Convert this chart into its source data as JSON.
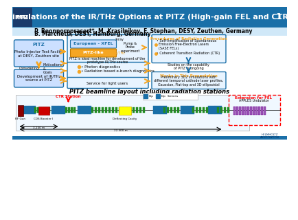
{
  "title": "Simulations of the IR/THz Options at PITZ (High-gain FEL and CTR)",
  "slide_number": "1",
  "authors_line1": "P. Boonpornprasert*, M. Krasilnikov, F. Stephan, DESY, Zeuthen, Germany",
  "authors_line2": "B. Marchetti, DESY, Hamburg, Germany",
  "header_bg": "#1a6fa8",
  "header_text_color": "#ffffff",
  "body_bg": "#ffffff",
  "logo_colors": [
    "#cc0000",
    "#1a6fa8",
    "#ffcc00"
  ],
  "box1_title": "PITZ",
  "box1_text": "Photo Injector Test Facility\nat DESY, Zeuthen site",
  "box1_bg": "#cce0ff",
  "box1_border": "#1a6fa8",
  "left_label1": "Considering",
  "left_label2": "Motivations\n& \nGoals",
  "box2_title": "Development of IR/THz\nsource at PITZ",
  "box2_bg": "#cce0ff",
  "box2_border": "#1a6fa8",
  "center_box_title1": "European - XFEL",
  "center_box_title2": "PITZ-like",
  "center_text": "PITZ is ideal machine for development of the\nprototype IR/THz source",
  "center_bullets": [
    "• Photon diagnostics",
    "• Radiation based e-bunch diagnostics"
  ],
  "center_service": "Service for light users",
  "right_box1_title": "Procedures of Radiation Generation",
  "right_box1_bullets": [
    "• Self-Amplification of Spontaneous\n  Emission Free-Electron Lasers\n  (SASE FELs)",
    "• Coherent Transition Radiation (CTR)"
  ],
  "right_box2_title": "Works in This Presentation",
  "right_box2_text": "Preliminary 3D2 simulations with\ndifferent temporal cathode laser profiles,\nGaussian, Flat-top and 3D ellipsoidal",
  "right_middle_text": "Studies on the capability\nof PITZ is ongoing",
  "beamline_title": "PITZ beamline layout including radiation stations",
  "ctr_label": "CTR Station",
  "rf_gun": "RF Gun",
  "cds_booster": "CDS Booster I",
  "deflecting_cavity": "Deflecting Cavity",
  "extension_label": "Extension for FEL",
  "extension_sub": "APPLES Undulator",
  "dist1": "3.250 m",
  "dist2": "22.500 m",
  "orange_color": "#f5a623",
  "blue_dark": "#1a6fa8",
  "light_blue_bg": "#e8f4ff",
  "arrow_color": "#f5a623",
  "green_color": "#228B22",
  "red_color": "#cc0000",
  "yellow_color": "#ffff00",
  "purple_color": "#9b59b6"
}
